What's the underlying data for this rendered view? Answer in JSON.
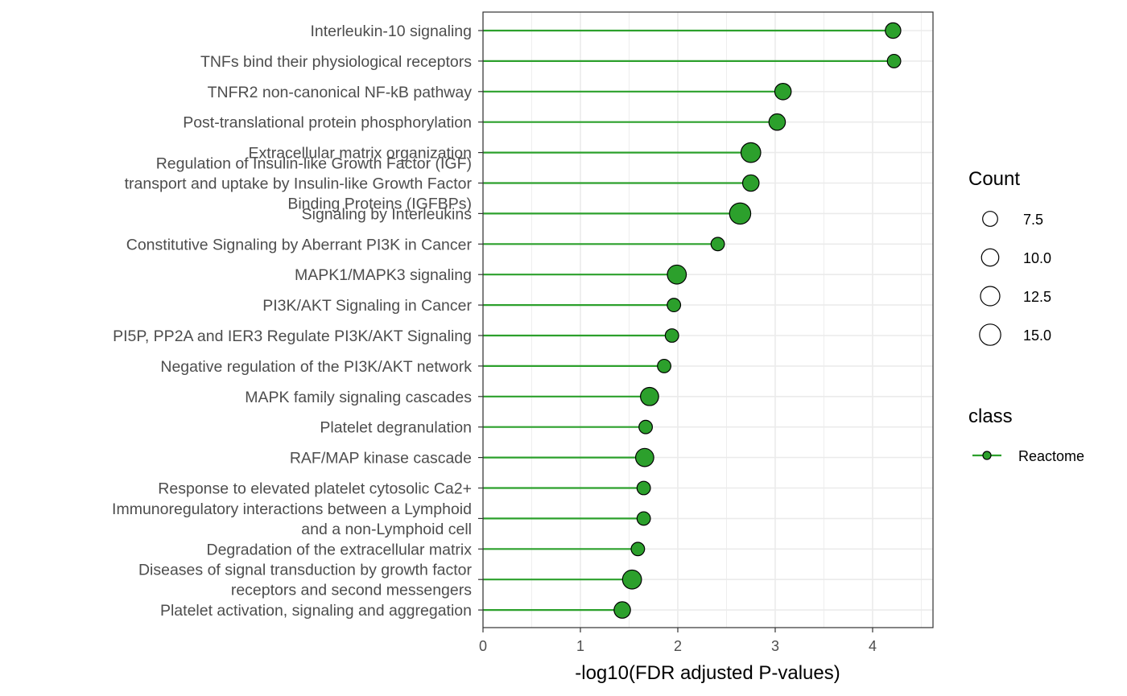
{
  "chart_data": {
    "type": "lollipop",
    "xlabel": "-log10(FDR adjusted P-values)",
    "xlim": [
      0,
      4.62
    ],
    "x_ticks": [
      "0",
      "1",
      "2",
      "3",
      "4"
    ],
    "grid": true,
    "series_color": "#2ca02c",
    "categories": [
      "Interleukin-10 signaling",
      "TNFs bind their physiological receptors",
      "TNFR2 non-canonical NF-kB pathway",
      "Post-translational protein phosphorylation",
      "Extracellular matrix organization",
      "Regulation of Insulin-like Growth Factor (IGF)\ntransport and uptake by Insulin-like Growth Factor\nBinding Proteins (IGFBPs)",
      "Signaling by Interleukins",
      "Constitutive Signaling by Aberrant PI3K in Cancer",
      "MAPK1/MAPK3 signaling",
      "PI3K/AKT Signaling in Cancer",
      "PI5P, PP2A and IER3 Regulate PI3K/AKT Signaling",
      "Negative regulation of the PI3K/AKT network",
      "MAPK family signaling cascades",
      "Platelet degranulation",
      "RAF/MAP kinase cascade",
      "Response to elevated platelet cytosolic Ca2+",
      "Immunoregulatory interactions between a Lymphoid\nand a non-Lymphoid cell",
      "Degradation of the extracellular matrix",
      "Diseases of signal transduction by growth factor\nreceptors and second messengers",
      "Platelet activation, signaling and aggregation"
    ],
    "values": [
      4.21,
      4.22,
      3.08,
      3.02,
      2.75,
      2.75,
      2.64,
      2.41,
      1.99,
      1.96,
      1.94,
      1.86,
      1.71,
      1.67,
      1.66,
      1.65,
      1.65,
      1.59,
      1.53,
      1.43
    ],
    "counts": [
      8,
      6,
      9,
      9,
      13,
      9,
      15,
      6,
      12,
      6,
      6,
      6,
      11,
      6,
      11,
      6,
      6,
      6,
      12,
      9
    ],
    "legend": {
      "size_title": "Count",
      "size_entries": [
        {
          "label": "7.5",
          "value": 7.5
        },
        {
          "label": "10.0",
          "value": 10.0
        },
        {
          "label": "12.5",
          "value": 12.5
        },
        {
          "label": "15.0",
          "value": 15.0
        }
      ],
      "class_title": "class",
      "class_entries": [
        "Reactome"
      ],
      "placement": "right"
    }
  }
}
